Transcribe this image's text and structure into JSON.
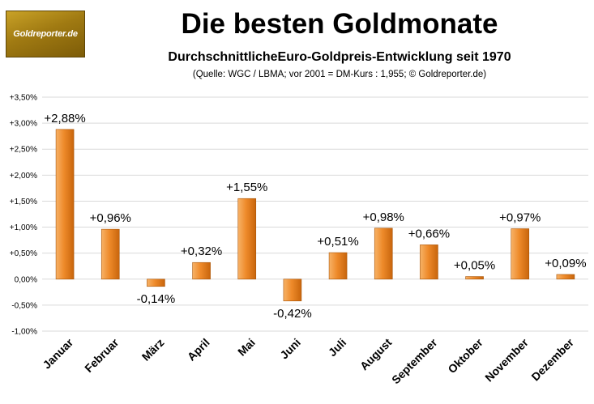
{
  "header": {
    "logo_text": "Goldreporter.de",
    "title": "Die besten Goldmonate",
    "subtitle": "DurchschnittlicheEuro-Goldpreis-Entwicklung seit 1970",
    "source": "(Quelle: WGC / LBMA; vor 2001 = DM-Kurs : 1,955; © Goldreporter.de)"
  },
  "colors": {
    "bar_light": "#f7b267",
    "bar_mid": "#ee8a2a",
    "bar_dark": "#c8650c",
    "grid": "#d9d9d9"
  },
  "chart_data": {
    "type": "bar",
    "title": "Die besten Goldmonate",
    "subtitle": "DurchschnittlicheEuro-Goldpreis-Entwicklung seit 1970",
    "xlabel": "",
    "ylabel": "",
    "categories": [
      "Januar",
      "Februar",
      "März",
      "April",
      "Mai",
      "Juni",
      "Juli",
      "August",
      "September",
      "Oktober",
      "November",
      "Dezember"
    ],
    "values": [
      2.88,
      0.96,
      -0.14,
      0.32,
      1.55,
      -0.42,
      0.51,
      0.98,
      0.66,
      0.05,
      0.97,
      0.09
    ],
    "data_labels": [
      "+2,88%",
      "+0,96%",
      "-0,14%",
      "+0,32%",
      "+1,55%",
      "-0,42%",
      "+0,51%",
      "+0,98%",
      "+0,66%",
      "+0,05%",
      "+0,97%",
      "+0,09%"
    ],
    "ylim": [
      -1.0,
      3.5
    ],
    "yticks": [
      3.5,
      3.0,
      2.5,
      2.0,
      1.5,
      1.0,
      0.5,
      0.0,
      -0.5,
      -1.0
    ],
    "ytick_labels": [
      "+3,50%",
      "+3,00%",
      "+2,50%",
      "+2,00%",
      "+1,50%",
      "+1,00%",
      "+0,50%",
      "0,00%",
      "-0,50%",
      "-1,00%"
    ],
    "grid": true,
    "legend": "none"
  }
}
